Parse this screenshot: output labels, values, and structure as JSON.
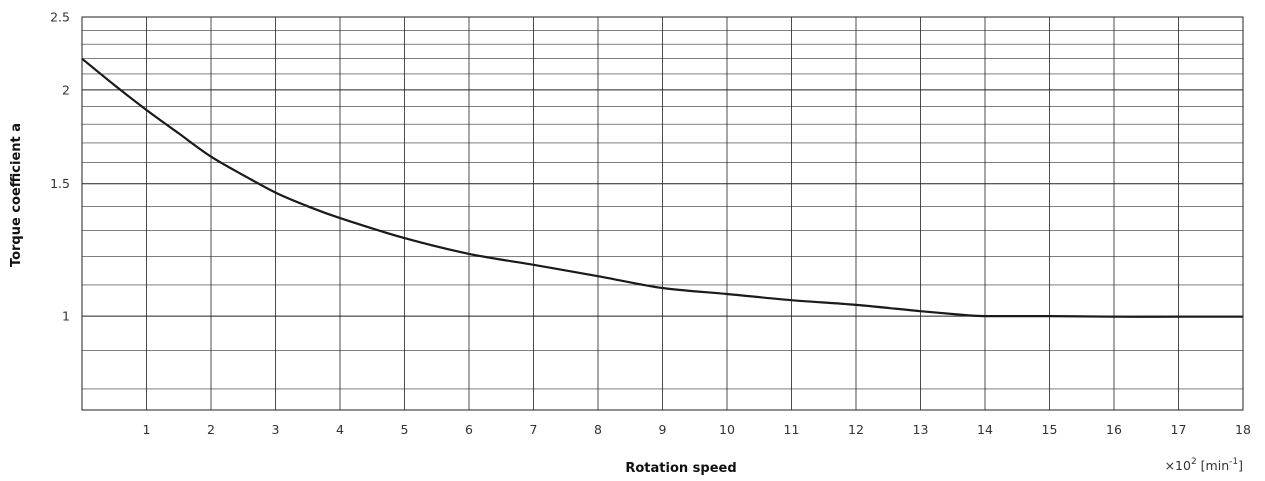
{
  "chart_data": {
    "type": "line",
    "xlabel": "Rotation speed",
    "ylabel": "Torque coefficient a",
    "x_unit_base": "×10",
    "x_unit_exp": "2",
    "x_unit_suffix": " [min",
    "x_unit_suffix_exp": "-1",
    "x_unit_close": "]",
    "xlim": [
      0,
      18
    ],
    "ylim": [
      0.75,
      2.5
    ],
    "y_scale": "log",
    "grid": true,
    "x_ticks": [
      "1",
      "2",
      "3",
      "4",
      "5",
      "6",
      "7",
      "8",
      "9",
      "10",
      "11",
      "12",
      "13",
      "14",
      "15",
      "16",
      "17",
      "18"
    ],
    "y_ticks": [
      {
        "value": 1,
        "label": "1"
      },
      {
        "value": 1.5,
        "label": "1.5"
      },
      {
        "value": 2,
        "label": "2"
      },
      {
        "value": 2.5,
        "label": "2.5"
      }
    ],
    "series": [
      {
        "x": [
          0,
          0.5,
          1,
          1.5,
          2,
          2.5,
          3,
          3.5,
          4,
          5,
          6,
          7,
          8,
          9,
          10,
          11,
          12,
          13,
          13.7,
          14,
          15,
          16,
          17,
          18
        ],
        "y": [
          2.2,
          2.03,
          1.88,
          1.75,
          1.63,
          1.54,
          1.46,
          1.4,
          1.35,
          1.27,
          1.21,
          1.17,
          1.13,
          1.09,
          1.07,
          1.05,
          1.035,
          1.015,
          1.003,
          1.0,
          1.0,
          0.998,
          0.998,
          0.998
        ],
        "color": "#1a1a1a"
      }
    ]
  }
}
